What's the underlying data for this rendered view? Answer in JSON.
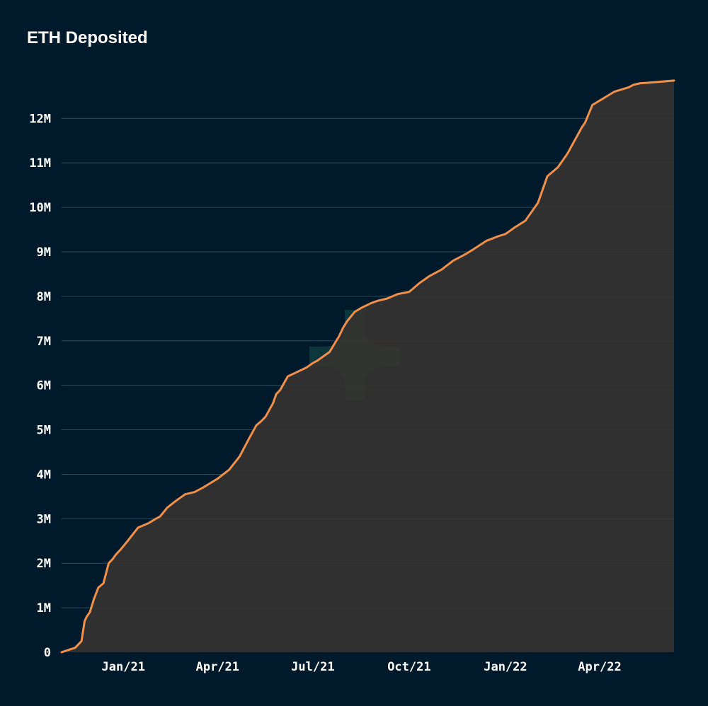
{
  "chart_data": {
    "type": "area",
    "title": "ETH Deposited",
    "xlabel": "",
    "ylabel": "",
    "x_tick_labels": [
      "Jan/21",
      "Apr/21",
      "Jul/21",
      "Oct/21",
      "Jan/22",
      "Apr/22"
    ],
    "x_tick_dates": [
      "2021-01-01",
      "2021-04-01",
      "2021-07-01",
      "2021-10-01",
      "2022-01-01",
      "2022-04-01"
    ],
    "x_range": [
      "2020-11-03",
      "2022-06-11"
    ],
    "y_tick_labels": [
      "0",
      "1M",
      "2M",
      "3M",
      "4M",
      "5M",
      "6M",
      "7M",
      "8M",
      "9M",
      "10M",
      "11M",
      "12M"
    ],
    "y_tick_values": [
      0,
      1000000,
      2000000,
      3000000,
      4000000,
      5000000,
      6000000,
      7000000,
      8000000,
      9000000,
      10000000,
      11000000,
      12000000
    ],
    "ylim": [
      0,
      12800000
    ],
    "grid": "horizontal",
    "colors": {
      "line": "#f0904a",
      "area": "#353330",
      "background": "#001a2c",
      "grid": "#2b4a58",
      "text": "#ffffff"
    },
    "series": [
      {
        "x": [
          "2020-11-03",
          "2020-11-09",
          "2020-11-16",
          "2020-11-22",
          "2020-11-25",
          "2020-11-27",
          "2020-11-30",
          "2020-12-04",
          "2020-12-08",
          "2020-12-13",
          "2020-12-18",
          "2020-12-22",
          "2020-12-25",
          "2020-12-29",
          "2021-01-05",
          "2021-01-15",
          "2021-01-25",
          "2021-02-01",
          "2021-02-05",
          "2021-02-12",
          "2021-02-20",
          "2021-03-01",
          "2021-03-10",
          "2021-03-18",
          "2021-03-25",
          "2021-04-01",
          "2021-04-12",
          "2021-04-22",
          "2021-05-01",
          "2021-05-08",
          "2021-05-13",
          "2021-05-17",
          "2021-05-24",
          "2021-05-27",
          "2021-05-31",
          "2021-06-07",
          "2021-06-16",
          "2021-06-25",
          "2021-07-01",
          "2021-07-05",
          "2021-07-17",
          "2021-07-26",
          "2021-07-30",
          "2021-08-03",
          "2021-08-10",
          "2021-08-17",
          "2021-08-26",
          "2021-09-01",
          "2021-09-10",
          "2021-09-20",
          "2021-10-01",
          "2021-10-11",
          "2021-10-20",
          "2021-11-01",
          "2021-11-12",
          "2021-11-24",
          "2021-12-01",
          "2021-12-14",
          "2021-12-25",
          "2022-01-01",
          "2022-01-10",
          "2022-01-20",
          "2022-02-01",
          "2022-02-10",
          "2022-02-20",
          "2022-03-01",
          "2022-03-08",
          "2022-03-15",
          "2022-03-18",
          "2022-03-25",
          "2022-04-01",
          "2022-04-08",
          "2022-04-15",
          "2022-04-22",
          "2022-04-29",
          "2022-05-03",
          "2022-05-06",
          "2022-05-10",
          "2022-05-17",
          "2022-05-27",
          "2022-06-06",
          "2022-06-11"
        ],
        "y": [
          0,
          50000,
          100000,
          250000,
          700000,
          800000,
          900000,
          1200000,
          1450000,
          1550000,
          2000000,
          2100000,
          2200000,
          2300000,
          2500000,
          2800000,
          2900000,
          3000000,
          3050000,
          3250000,
          3400000,
          3550000,
          3600000,
          3700000,
          3800000,
          3900000,
          4100000,
          4400000,
          4800000,
          5100000,
          5200000,
          5300000,
          5600000,
          5800000,
          5900000,
          6200000,
          6300000,
          6400000,
          6500000,
          6550000,
          6750000,
          7100000,
          7300000,
          7450000,
          7650000,
          7750000,
          7850000,
          7900000,
          7950000,
          8050000,
          8100000,
          8300000,
          8450000,
          8600000,
          8800000,
          8950000,
          9050000,
          9250000,
          9350000,
          9400000,
          9550000,
          9700000,
          10100000,
          10700000,
          10900000,
          11200000,
          11500000,
          11800000,
          11900000,
          12300000,
          12400000,
          12500000,
          12600000,
          12650000,
          12700000,
          12750000,
          12770000,
          12790000,
          12800000,
          12820000,
          12840000,
          12850000
        ]
      }
    ]
  }
}
